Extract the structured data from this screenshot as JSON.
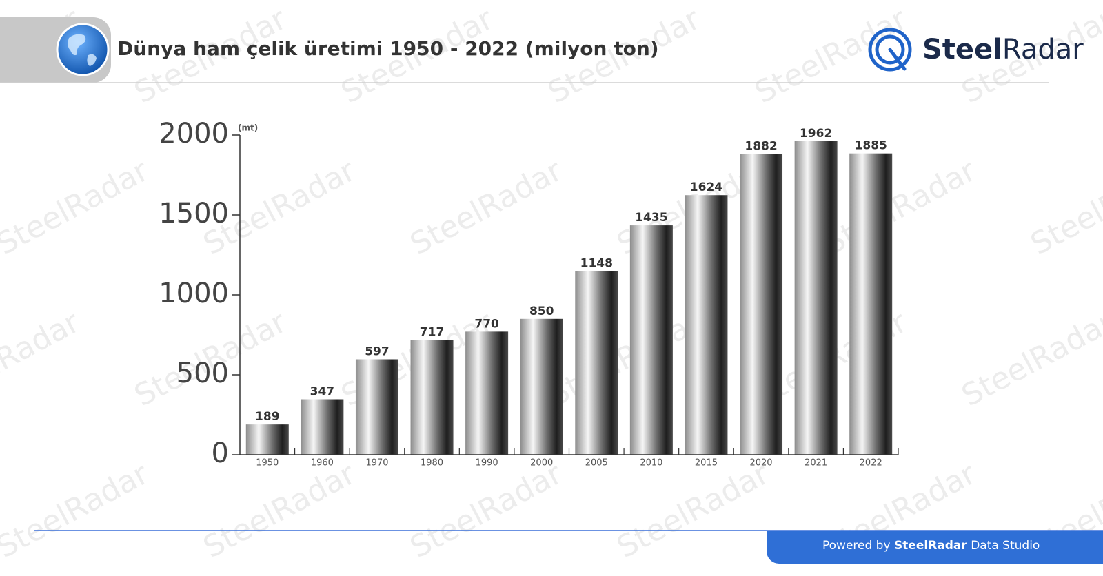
{
  "header": {
    "title": "Dünya ham çelik üretimi 1950 - 2022 (milyon ton)"
  },
  "logo": {
    "first": "Steel",
    "second": "Radar"
  },
  "watermark": "SteelRadar",
  "footer": {
    "prefix": "Powered by",
    "brand": "SteelRadar",
    "suffix": "Data Studio"
  },
  "chart_data": {
    "type": "bar",
    "unit_label": "(mt)",
    "categories": [
      "1950",
      "1960",
      "1970",
      "1980",
      "1990",
      "2000",
      "2005",
      "2010",
      "2015",
      "2020",
      "2021",
      "2022"
    ],
    "values": [
      189,
      347,
      597,
      717,
      770,
      850,
      1148,
      1435,
      1624,
      1882,
      1962,
      1885
    ],
    "ylim": [
      0,
      2000
    ],
    "yticks": [
      0,
      500,
      1000,
      1500,
      2000
    ],
    "grid": false,
    "color": "url(#steel)"
  }
}
